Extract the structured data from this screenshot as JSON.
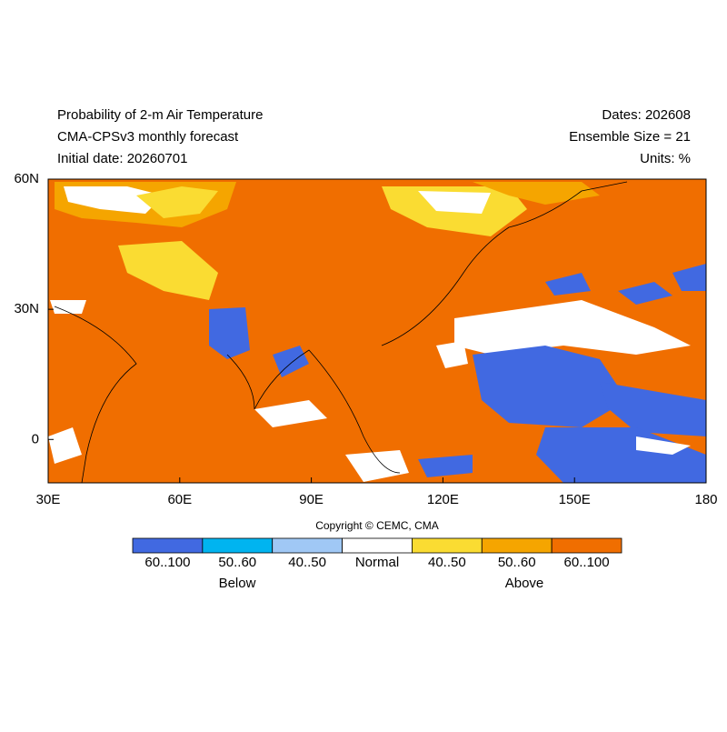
{
  "header": {
    "left": [
      "Probability of 2-m Air Temperature",
      "CMA-CPSv3 monthly forecast",
      "Initial date: 20260701"
    ],
    "right": [
      "Dates: 202608",
      "Ensemble Size = 21",
      "Units: %"
    ]
  },
  "map": {
    "xlim": [
      30,
      180
    ],
    "ylim": [
      -10,
      60
    ],
    "xticks": [
      {
        "value": 30,
        "label": "30E"
      },
      {
        "value": 60,
        "label": "60E"
      },
      {
        "value": 90,
        "label": "90E"
      },
      {
        "value": 120,
        "label": "120E"
      },
      {
        "value": 150,
        "label": "150E"
      },
      180
    ],
    "yticks": [
      0,
      {
        "value": 30,
        "label": "30N"
      },
      {
        "value": 60,
        "label": "60N"
      }
    ]
  },
  "legend": {
    "copyright": "Copyright © CEMC, CMA",
    "bins": [
      {
        "label": "60..100",
        "color": "#4169e1"
      },
      {
        "label": "50..60",
        "color": "#00b4f0"
      },
      {
        "label": "40..50",
        "color": "#a0c8f5"
      },
      {
        "label": "Normal",
        "color": "#ffffff"
      },
      {
        "label": "40..50",
        "color": "#fadc32"
      },
      {
        "label": "50..60",
        "color": "#f5a500"
      },
      {
        "label": "60..100",
        "color": "#f06e00"
      }
    ],
    "groups": [
      "Below",
      "Above"
    ]
  }
}
